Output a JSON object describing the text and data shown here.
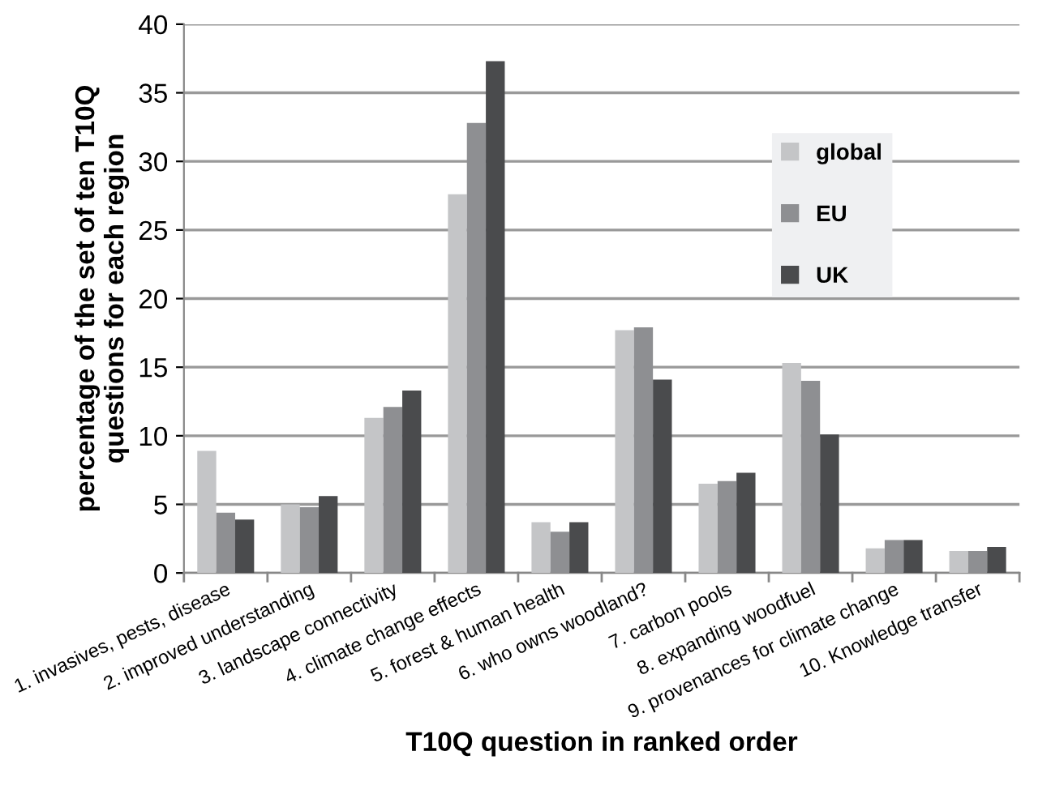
{
  "chart_data": {
    "type": "bar",
    "categories": [
      "1. invasives, pests, disease",
      "2. improved understanding",
      "3. landscape connectivity",
      "4. climate change effects",
      "5. forest & human health",
      "6. who owns woodland?",
      "7. carbon pools",
      "8. expanding woodfuel",
      "9. provenances for climate change",
      "10. Knowledge transfer"
    ],
    "series": [
      {
        "name": "global",
        "color": "#c4c5c7",
        "values": [
          8.9,
          5.0,
          11.3,
          27.6,
          3.7,
          17.7,
          6.5,
          15.3,
          1.8,
          1.6
        ]
      },
      {
        "name": "EU",
        "color": "#8e8f92",
        "values": [
          4.4,
          4.8,
          12.1,
          32.8,
          3.0,
          17.9,
          6.7,
          14.0,
          2.4,
          1.6
        ]
      },
      {
        "name": "UK",
        "color": "#4a4b4d",
        "values": [
          3.9,
          5.6,
          13.3,
          37.3,
          3.7,
          14.1,
          7.3,
          10.1,
          2.4,
          1.9
        ]
      }
    ],
    "xlabel": "T10Q question in ranked order",
    "ylabel": "percentage of the set of ten T10Q\nquestions for each region",
    "ylim": [
      0,
      40
    ],
    "yticks": [
      0,
      5,
      10,
      15,
      20,
      25,
      30,
      35,
      40
    ],
    "grid": "y",
    "legend": "top right"
  }
}
